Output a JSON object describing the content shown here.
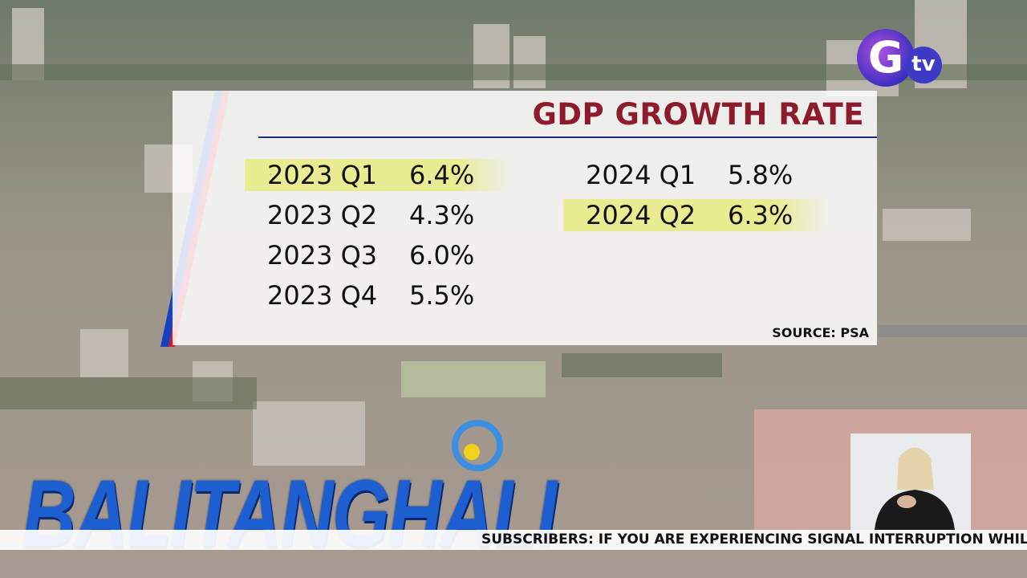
{
  "panel": {
    "title": "GDP GROWTH RATE",
    "columns": [
      [
        {
          "label": "2023 Q1",
          "value": "6.4%",
          "highlight": true
        },
        {
          "label": "2023 Q2",
          "value": "4.3%",
          "highlight": false
        },
        {
          "label": "2023 Q3",
          "value": "6.0%",
          "highlight": false
        },
        {
          "label": "2023 Q4",
          "value": "5.5%",
          "highlight": false
        }
      ],
      [
        {
          "label": "2024 Q1",
          "value": "5.8%",
          "highlight": false
        },
        {
          "label": "2024 Q2",
          "value": "6.3%",
          "highlight": true
        }
      ]
    ],
    "source": "SOURCE: PSA"
  },
  "logo": {
    "letter": "G",
    "suffix": "tv"
  },
  "show": "BALITANGHALI",
  "ticker": "SUBSCRIBERS: IF YOU ARE EXPERIENCING SIGNAL INTERRUPTION WHILE WA"
}
